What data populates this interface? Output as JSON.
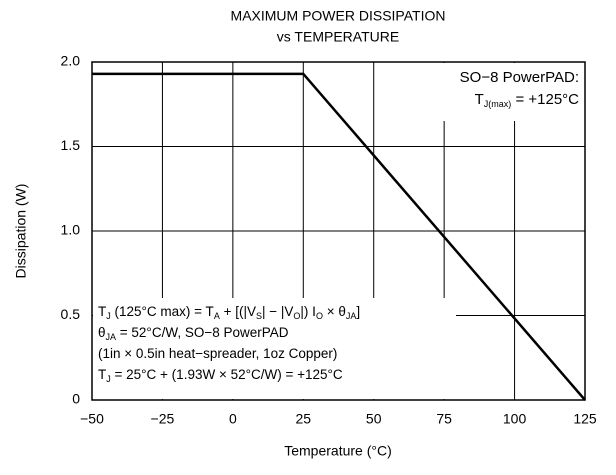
{
  "chart_data": {
    "type": "line",
    "title": [
      "MAXIMUM POWER DISSIPATION",
      "vs TEMPERATURE"
    ],
    "xlabel": "Temperature (°C)",
    "ylabel": "Dissipation (W)",
    "x": [
      -50,
      25,
      125
    ],
    "values": [
      1.93,
      1.93,
      0
    ],
    "color": "#000000",
    "xlim": [
      -50,
      125
    ],
    "ylim": [
      0,
      2.0
    ],
    "xticks": [
      {
        "value": -50,
        "label": "−50"
      },
      {
        "value": -25,
        "label": "−25"
      },
      0,
      25,
      50,
      75,
      100,
      125
    ],
    "yticks": [
      0,
      0.5,
      {
        "value": 1.0,
        "label": "1.0"
      },
      1.5,
      {
        "value": 2.0,
        "label": "2.0"
      }
    ],
    "grid": true,
    "annotations": [
      {
        "corner": "top-right",
        "lines": [
          [
            "SO−8 PowerPAD:"
          ],
          [
            "T",
            {
              "sub": "J(max)"
            },
            " = +125°C"
          ]
        ]
      },
      {
        "corner": "bottom-left",
        "lines": [
          [
            "T",
            {
              "sub": "J"
            },
            " (125°C max) = T",
            {
              "sub": "A"
            },
            " + [(|V",
            {
              "sub": "S"
            },
            "| − |V",
            {
              "sub": "O"
            },
            "|) I",
            {
              "sub": "O"
            },
            " × θ",
            {
              "sub": "JA"
            },
            "]"
          ],
          [
            "θ",
            {
              "sub": "JA"
            },
            " = 52°C/W, SO−8 PowerPAD"
          ],
          [
            "(1in × 0.5in heat−spreader, 1oz Copper)"
          ],
          [
            "T",
            {
              "sub": "J"
            },
            " = 25°C + (1.93W × 52°C/W) = +125°C"
          ]
        ]
      }
    ]
  }
}
